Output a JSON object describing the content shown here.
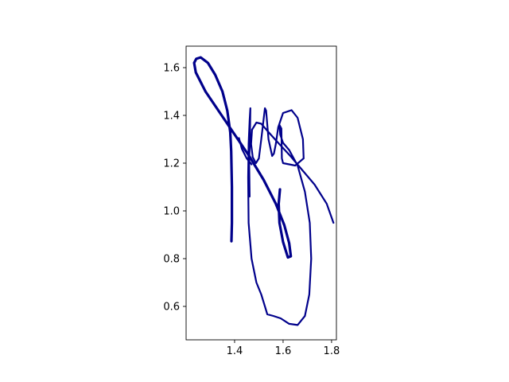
{
  "chart_data": {
    "type": "line",
    "title": "",
    "xlabel": "",
    "ylabel": "",
    "xlim": [
      1.2,
      1.82
    ],
    "ylim": [
      0.46,
      1.69
    ],
    "xticks": [
      1.4,
      1.6,
      1.8
    ],
    "yticks": [
      0.6,
      0.8,
      1.0,
      1.2,
      1.4,
      1.6
    ],
    "xtick_labels": [
      "1.4",
      "1.6",
      "1.8"
    ],
    "ytick_labels": [
      "0.6",
      "0.8",
      "1.0",
      "1.2",
      "1.4",
      "1.6"
    ],
    "grid": false,
    "legend": "none",
    "line_color": "#00008b",
    "series": [
      {
        "style": "thick",
        "points": [
          [
            1.387,
            0.873
          ],
          [
            1.389,
            0.95
          ],
          [
            1.389,
            1.1
          ],
          [
            1.386,
            1.25
          ],
          [
            1.382,
            1.33
          ],
          [
            1.37,
            1.42
          ],
          [
            1.35,
            1.5
          ],
          [
            1.32,
            1.57
          ],
          [
            1.29,
            1.62
          ],
          [
            1.26,
            1.643
          ],
          [
            1.242,
            1.637
          ],
          [
            1.233,
            1.62
          ],
          [
            1.24,
            1.58
          ],
          [
            1.28,
            1.5
          ],
          [
            1.34,
            1.41
          ],
          [
            1.4,
            1.32
          ],
          [
            1.46,
            1.23
          ],
          [
            1.52,
            1.13
          ],
          [
            1.57,
            1.03
          ],
          [
            1.605,
            0.94
          ],
          [
            1.625,
            0.865
          ],
          [
            1.632,
            0.81
          ],
          [
            1.62,
            0.805
          ],
          [
            1.6,
            0.87
          ],
          [
            1.585,
            0.95
          ],
          [
            1.582,
            1.03
          ],
          [
            1.587,
            1.09
          ]
        ]
      },
      {
        "style": "thin",
        "points": [
          [
            1.462,
            1.06
          ],
          [
            1.46,
            1.2
          ],
          [
            1.463,
            1.3
          ],
          [
            1.465,
            1.43
          ],
          [
            1.462,
            1.38
          ],
          [
            1.458,
            1.28
          ],
          [
            1.456,
            1.14
          ],
          [
            1.458,
            0.95
          ],
          [
            1.47,
            0.8
          ],
          [
            1.49,
            0.7
          ],
          [
            1.51,
            0.65
          ],
          [
            1.525,
            0.6
          ],
          [
            1.535,
            0.567
          ],
          [
            1.56,
            0.56
          ],
          [
            1.59,
            0.55
          ],
          [
            1.625,
            0.527
          ],
          [
            1.66,
            0.522
          ],
          [
            1.69,
            0.56
          ],
          [
            1.708,
            0.65
          ],
          [
            1.716,
            0.8
          ],
          [
            1.71,
            0.95
          ],
          [
            1.69,
            1.08
          ],
          [
            1.66,
            1.19
          ],
          [
            1.625,
            1.255
          ],
          [
            1.6,
            1.285
          ],
          [
            1.588,
            1.32
          ],
          [
            1.585,
            1.36
          ],
          [
            1.593,
            1.345
          ],
          [
            1.595,
            1.22
          ],
          [
            1.6,
            1.2
          ],
          [
            1.65,
            1.19
          ],
          [
            1.685,
            1.22
          ],
          [
            1.682,
            1.3
          ],
          [
            1.66,
            1.39
          ],
          [
            1.635,
            1.422
          ],
          [
            1.6,
            1.41
          ],
          [
            1.58,
            1.35
          ],
          [
            1.57,
            1.28
          ],
          [
            1.562,
            1.24
          ],
          [
            1.555,
            1.23
          ],
          [
            1.54,
            1.3
          ],
          [
            1.53,
            1.42
          ],
          [
            1.525,
            1.43
          ],
          [
            1.51,
            1.3
          ],
          [
            1.5,
            1.22
          ],
          [
            1.488,
            1.2
          ],
          [
            1.475,
            1.225
          ],
          [
            1.468,
            1.28
          ],
          [
            1.472,
            1.34
          ],
          [
            1.49,
            1.37
          ],
          [
            1.51,
            1.365
          ],
          [
            1.54,
            1.33
          ],
          [
            1.58,
            1.285
          ],
          [
            1.63,
            1.23
          ],
          [
            1.68,
            1.17
          ],
          [
            1.73,
            1.11
          ],
          [
            1.78,
            1.03
          ],
          [
            1.808,
            0.95
          ]
        ]
      },
      {
        "style": "thin",
        "points": [
          [
            1.418,
            1.305
          ],
          [
            1.43,
            1.26
          ],
          [
            1.45,
            1.22
          ],
          [
            1.47,
            1.195
          ]
        ]
      }
    ]
  }
}
